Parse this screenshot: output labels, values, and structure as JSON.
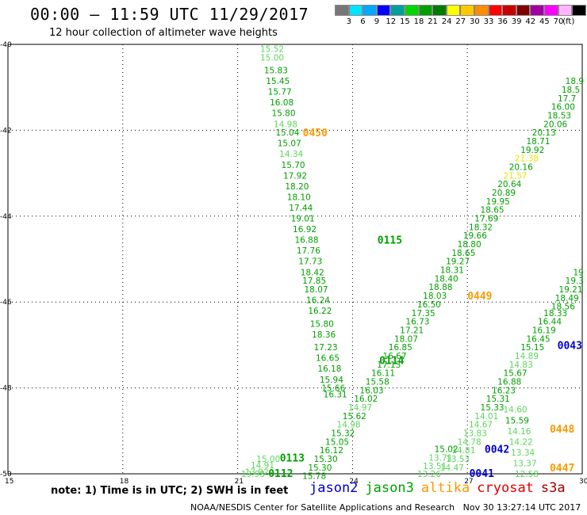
{
  "header": {
    "title": "00:00 – 11:59 UTC 11/29/2017",
    "subtitle": "12 hour collection of altimeter wave heights"
  },
  "legend": {
    "colors": [
      "#777777",
      "#00e5ff",
      "#00a8ff",
      "#0000ff",
      "#009e9e",
      "#00d700",
      "#00a000",
      "#007a00",
      "#ffff00",
      "#ffc800",
      "#ff8c00",
      "#ff0000",
      "#c80000",
      "#800000",
      "#a000a0",
      "#ff00ff",
      "#ffb4ff",
      "#000000"
    ],
    "labels": [
      "3",
      "6",
      "9",
      "12",
      "15",
      "18",
      "21",
      "24",
      "27",
      "30",
      "33",
      "36",
      "39",
      "42",
      "45",
      "70",
      "(ft)"
    ]
  },
  "axes": {
    "lon_labels": [
      "15",
      "18",
      "21",
      "24",
      "27",
      "30"
    ],
    "lat_labels": [
      "-40",
      "-42",
      "-44",
      "-46",
      "-48",
      "-50"
    ],
    "lon_range": [
      15,
      30
    ],
    "lat_range": [
      -40,
      -50
    ]
  },
  "map_data": {
    "tracks": [
      {
        "label": "0450",
        "label_color": "#ff9900",
        "label_pos": [
          22.7,
          -42.05
        ],
        "points": [
          {
            "lon": 21.9,
            "lat": -40.1,
            "v": "15.52",
            "c": "#5cd65c"
          },
          {
            "lon": 21.9,
            "lat": -40.3,
            "v": "15.00",
            "c": "#5cd65c"
          },
          {
            "lon": 22.0,
            "lat": -40.6,
            "v": "15.83",
            "c": "#00a000"
          },
          {
            "lon": 22.05,
            "lat": -40.85,
            "v": "15.45",
            "c": "#00a000"
          },
          {
            "lon": 22.1,
            "lat": -41.1,
            "v": "15.77",
            "c": "#00a000"
          },
          {
            "lon": 22.15,
            "lat": -41.35,
            "v": "16.08",
            "c": "#00a000"
          },
          {
            "lon": 22.2,
            "lat": -41.6,
            "v": "15.80",
            "c": "#00a000"
          },
          {
            "lon": 22.25,
            "lat": -41.85,
            "v": "14.98",
            "c": "#5cd65c"
          },
          {
            "lon": 22.3,
            "lat": -42.05,
            "v": "15.04",
            "c": "#00a000"
          },
          {
            "lon": 22.35,
            "lat": -42.3,
            "v": "15.07",
            "c": "#00a000"
          },
          {
            "lon": 22.4,
            "lat": -42.55,
            "v": "14.34",
            "c": "#5cd65c"
          },
          {
            "lon": 22.45,
            "lat": -42.8,
            "v": "15.70",
            "c": "#00a000"
          },
          {
            "lon": 22.5,
            "lat": -43.05,
            "v": "17.92",
            "c": "#00a000"
          },
          {
            "lon": 22.55,
            "lat": -43.3,
            "v": "18.20",
            "c": "#00a000"
          },
          {
            "lon": 22.6,
            "lat": -43.55,
            "v": "18.10",
            "c": "#00a000"
          },
          {
            "lon": 22.65,
            "lat": -43.8,
            "v": "17.44",
            "c": "#00a000"
          },
          {
            "lon": 22.7,
            "lat": -44.05,
            "v": "19.01",
            "c": "#00a000"
          },
          {
            "lon": 22.75,
            "lat": -44.3,
            "v": "16.92",
            "c": "#00a000"
          },
          {
            "lon": 22.8,
            "lat": -44.55,
            "v": "16.88",
            "c": "#00a000"
          },
          {
            "lon": 22.85,
            "lat": -44.8,
            "v": "17.76",
            "c": "#00a000"
          },
          {
            "lon": 22.9,
            "lat": -45.05,
            "v": "17.73",
            "c": "#00a000"
          },
          {
            "lon": 22.95,
            "lat": -45.3,
            "v": "18.42",
            "c": "#00a000"
          },
          {
            "lon": 23.0,
            "lat": -45.5,
            "v": "17.85",
            "c": "#00a000"
          },
          {
            "lon": 23.05,
            "lat": -45.7,
            "v": "18.07",
            "c": "#00a000"
          },
          {
            "lon": 23.1,
            "lat": -45.95,
            "v": "16.24",
            "c": "#00a000"
          },
          {
            "lon": 23.15,
            "lat": -46.2,
            "v": "16.22",
            "c": "#00a000"
          },
          {
            "lon": 23.2,
            "lat": -46.5,
            "v": "15.80",
            "c": "#00a000"
          },
          {
            "lon": 23.25,
            "lat": -46.75,
            "v": "18.36",
            "c": "#00a000"
          },
          {
            "lon": 23.3,
            "lat": -47.05,
            "v": "17.23",
            "c": "#00a000"
          },
          {
            "lon": 23.35,
            "lat": -47.3,
            "v": "16.65",
            "c": "#00a000"
          },
          {
            "lon": 23.4,
            "lat": -47.55,
            "v": "16.18",
            "c": "#00a000"
          },
          {
            "lon": 23.45,
            "lat": -47.8,
            "v": "15.94",
            "c": "#00a000"
          },
          {
            "lon": 23.5,
            "lat": -48.0,
            "v": "15.66",
            "c": "#00a000"
          },
          {
            "lon": 23.55,
            "lat": -48.15,
            "v": "16.31",
            "c": "#00a000"
          }
        ]
      },
      {
        "label": "0115",
        "label_color": "#00a000",
        "label_pos": [
          24.65,
          -44.55
        ],
        "points": [
          {
            "lon": 29.8,
            "lat": -40.85,
            "v": "18.9",
            "c": "#00a000"
          },
          {
            "lon": 29.7,
            "lat": -41.05,
            "v": "18.5",
            "c": "#00a000"
          },
          {
            "lon": 29.6,
            "lat": -41.25,
            "v": "17.7",
            "c": "#00a000"
          },
          {
            "lon": 29.5,
            "lat": -41.45,
            "v": "16.00",
            "c": "#00a000"
          },
          {
            "lon": 29.4,
            "lat": -41.65,
            "v": "18.53",
            "c": "#00a000"
          },
          {
            "lon": 29.3,
            "lat": -41.85,
            "v": "20.06",
            "c": "#00a000"
          },
          {
            "lon": 29.0,
            "lat": -42.05,
            "v": "20.13",
            "c": "#00a000"
          },
          {
            "lon": 28.85,
            "lat": -42.25,
            "v": "18.71",
            "c": "#00a000"
          },
          {
            "lon": 28.7,
            "lat": -42.45,
            "v": "19.92",
            "c": "#00a000"
          },
          {
            "lon": 28.55,
            "lat": -42.65,
            "v": "21.38",
            "c": "#e6e600"
          },
          {
            "lon": 28.4,
            "lat": -42.85,
            "v": "20.16",
            "c": "#00a000"
          },
          {
            "lon": 28.25,
            "lat": -43.05,
            "v": "21.57",
            "c": "#e6e600"
          },
          {
            "lon": 28.1,
            "lat": -43.25,
            "v": "20.64",
            "c": "#00a000"
          },
          {
            "lon": 27.95,
            "lat": -43.45,
            "v": "20.89",
            "c": "#00a000"
          },
          {
            "lon": 27.8,
            "lat": -43.65,
            "v": "19.95",
            "c": "#00a000"
          },
          {
            "lon": 27.65,
            "lat": -43.85,
            "v": "18.65",
            "c": "#00a000"
          },
          {
            "lon": 27.5,
            "lat": -44.05,
            "v": "17.69",
            "c": "#00a000"
          },
          {
            "lon": 27.35,
            "lat": -44.25,
            "v": "18.32",
            "c": "#00a000"
          },
          {
            "lon": 27.2,
            "lat": -44.45,
            "v": "19.66",
            "c": "#00a000"
          },
          {
            "lon": 27.05,
            "lat": -44.65,
            "v": "18.80",
            "c": "#00a000"
          },
          {
            "lon": 26.9,
            "lat": -44.85,
            "v": "18.65",
            "c": "#00a000"
          },
          {
            "lon": 26.75,
            "lat": -45.05,
            "v": "19.27",
            "c": "#00a000"
          },
          {
            "lon": 26.6,
            "lat": -45.25,
            "v": "18.31",
            "c": "#00a000"
          },
          {
            "lon": 26.45,
            "lat": -45.45,
            "v": "18.40",
            "c": "#00a000"
          },
          {
            "lon": 26.3,
            "lat": -45.65,
            "v": "18.88",
            "c": "#00a000"
          },
          {
            "lon": 26.15,
            "lat": -45.85,
            "v": "18.03",
            "c": "#00a000"
          },
          {
            "lon": 26.0,
            "lat": -46.05,
            "v": "16.50",
            "c": "#00a000"
          },
          {
            "lon": 25.85,
            "lat": -46.25,
            "v": "17.35",
            "c": "#00a000"
          },
          {
            "lon": 25.7,
            "lat": -46.45,
            "v": "16.73",
            "c": "#00a000"
          },
          {
            "lon": 25.55,
            "lat": -46.65,
            "v": "17.21",
            "c": "#00a000"
          },
          {
            "lon": 25.4,
            "lat": -46.85,
            "v": "18.07",
            "c": "#00a000"
          },
          {
            "lon": 25.25,
            "lat": -47.05,
            "v": "16.85",
            "c": "#00a000"
          },
          {
            "lon": 25.1,
            "lat": -47.25,
            "v": "16.67",
            "c": "#00a000"
          },
          {
            "lon": 24.95,
            "lat": -47.45,
            "v": "17.13",
            "c": "#00a000"
          }
        ]
      },
      {
        "label": "0449",
        "label_color": "#ff9900",
        "label_pos": [
          27.0,
          -45.85
        ],
        "points": []
      },
      {
        "label": "0114",
        "label_color": "#00a000",
        "label_pos": [
          24.7,
          -47.35
        ],
        "points": [
          {
            "lon": 24.8,
            "lat": -47.65,
            "v": "16.11",
            "c": "#00a000"
          },
          {
            "lon": 24.65,
            "lat": -47.85,
            "v": "15.58",
            "c": "#00a000"
          },
          {
            "lon": 24.5,
            "lat": -48.05,
            "v": "16.03",
            "c": "#00a000"
          },
          {
            "lon": 24.35,
            "lat": -48.25,
            "v": "16.02",
            "c": "#00a000"
          },
          {
            "lon": 24.2,
            "lat": -48.45,
            "v": "14.97",
            "c": "#5cd65c"
          },
          {
            "lon": 24.05,
            "lat": -48.65,
            "v": "15.62",
            "c": "#00a000"
          },
          {
            "lon": 23.9,
            "lat": -48.85,
            "v": "14.98",
            "c": "#5cd65c"
          },
          {
            "lon": 23.75,
            "lat": -49.05,
            "v": "15.32",
            "c": "#00a000"
          },
          {
            "lon": 23.6,
            "lat": -49.25,
            "v": "15.05",
            "c": "#00a000"
          },
          {
            "lon": 23.45,
            "lat": -49.45,
            "v": "16.12",
            "c": "#00a000"
          },
          {
            "lon": 23.3,
            "lat": -49.65,
            "v": "15.30",
            "c": "#00a000"
          },
          {
            "lon": 23.15,
            "lat": -49.85,
            "v": "15.30",
            "c": "#00a000"
          },
          {
            "lon": 23.0,
            "lat": -50.05,
            "v": "15.78",
            "c": "#00a000"
          }
        ]
      },
      {
        "label": "0043",
        "label_color": "#0000cc",
        "label_pos": [
          29.35,
          -47.0
        ],
        "points": [
          {
            "lon": 29.9,
            "lat": -45.3,
            "v": "19",
            "c": "#00a000"
          },
          {
            "lon": 29.8,
            "lat": -45.5,
            "v": "19.3",
            "c": "#00a000"
          },
          {
            "lon": 29.7,
            "lat": -45.7,
            "v": "19.21",
            "c": "#00a000"
          },
          {
            "lon": 29.6,
            "lat": -45.9,
            "v": "18.49",
            "c": "#00a000"
          },
          {
            "lon": 29.5,
            "lat": -46.1,
            "v": "18.56",
            "c": "#00a000"
          },
          {
            "lon": 29.3,
            "lat": -46.25,
            "v": "18.33",
            "c": "#00a000"
          },
          {
            "lon": 29.15,
            "lat": -46.45,
            "v": "16.44",
            "c": "#00a000"
          },
          {
            "lon": 29.0,
            "lat": -46.65,
            "v": "16.19",
            "c": "#00a000"
          },
          {
            "lon": 28.85,
            "lat": -46.85,
            "v": "16.45",
            "c": "#00a000"
          },
          {
            "lon": 28.7,
            "lat": -47.05,
            "v": "15.15",
            "c": "#00a000"
          },
          {
            "lon": 28.55,
            "lat": -47.25,
            "v": "14.89",
            "c": "#5cd65c"
          },
          {
            "lon": 28.4,
            "lat": -47.45,
            "v": "14.83",
            "c": "#5cd65c"
          },
          {
            "lon": 28.25,
            "lat": -47.65,
            "v": "15.67",
            "c": "#00a000"
          },
          {
            "lon": 28.1,
            "lat": -47.85,
            "v": "16.88",
            "c": "#00a000"
          },
          {
            "lon": 27.95,
            "lat": -48.05,
            "v": "16.23",
            "c": "#00a000"
          },
          {
            "lon": 27.8,
            "lat": -48.25,
            "v": "15.31",
            "c": "#00a000"
          },
          {
            "lon": 27.65,
            "lat": -48.45,
            "v": "15.33",
            "c": "#00a000"
          },
          {
            "lon": 27.5,
            "lat": -48.65,
            "v": "14.01",
            "c": "#5cd65c"
          },
          {
            "lon": 27.35,
            "lat": -48.85,
            "v": "14.67",
            "c": "#5cd65c"
          },
          {
            "lon": 27.2,
            "lat": -49.05,
            "v": "13.83",
            "c": "#5cd65c"
          },
          {
            "lon": 27.05,
            "lat": -49.25,
            "v": "14.78",
            "c": "#5cd65c"
          },
          {
            "lon": 26.9,
            "lat": -49.45,
            "v": "14.81",
            "c": "#5cd65c"
          },
          {
            "lon": 26.75,
            "lat": -49.65,
            "v": "13.53",
            "c": "#5cd65c"
          },
          {
            "lon": 26.6,
            "lat": -49.85,
            "v": "14.47",
            "c": "#5cd65c"
          }
        ]
      },
      {
        "label": "0448",
        "label_color": "#ff9900",
        "label_pos": [
          29.15,
          -48.95
        ],
        "points": [
          {
            "lon": 28.25,
            "lat": -48.5,
            "v": "14.60",
            "c": "#5cd65c"
          },
          {
            "lon": 28.3,
            "lat": -48.75,
            "v": "15.59",
            "c": "#00a000"
          },
          {
            "lon": 28.35,
            "lat": -49.0,
            "v": "14.16",
            "c": "#5cd65c"
          },
          {
            "lon": 28.4,
            "lat": -49.25,
            "v": "14.22",
            "c": "#5cd65c"
          },
          {
            "lon": 28.45,
            "lat": -49.5,
            "v": "13.34",
            "c": "#5cd65c"
          },
          {
            "lon": 28.5,
            "lat": -49.75,
            "v": "13.37",
            "c": "#5cd65c"
          },
          {
            "lon": 28.55,
            "lat": -50.0,
            "v": "12.58",
            "c": "#5cd65c"
          }
        ]
      },
      {
        "label": "0447",
        "label_color": "#ff9900",
        "label_pos": [
          29.15,
          -49.85
        ],
        "points": []
      },
      {
        "label": "0042",
        "label_color": "#0000cc",
        "label_pos": [
          27.45,
          -49.42
        ],
        "points": [
          {
            "lon": 26.45,
            "lat": -49.42,
            "v": "15.02",
            "c": "#00a000"
          },
          {
            "lon": 26.3,
            "lat": -49.62,
            "v": "13.71",
            "c": "#5cd65c"
          },
          {
            "lon": 26.15,
            "lat": -49.82,
            "v": "13.51",
            "c": "#5cd65c"
          },
          {
            "lon": 26.0,
            "lat": -50.0,
            "v": "13.26",
            "c": "#5cd65c"
          }
        ]
      },
      {
        "label": "0041",
        "label_color": "#0000cc",
        "label_pos": [
          27.05,
          -49.98
        ],
        "points": []
      },
      {
        "label": "0113",
        "label_color": "#00a000",
        "label_pos": [
          22.1,
          -49.62
        ],
        "points": [
          {
            "lon": 21.8,
            "lat": -49.65,
            "v": "15.00",
            "c": "#5cd65c"
          },
          {
            "lon": 21.65,
            "lat": -49.8,
            "v": "14.91",
            "c": "#5cd65c"
          },
          {
            "lon": 21.5,
            "lat": -49.95,
            "v": "13.92",
            "c": "#5cd65c"
          }
        ]
      },
      {
        "label": "0112",
        "label_color": "#00a000",
        "label_pos": [
          21.8,
          -49.98
        ],
        "points": [
          {
            "lon": 21.4,
            "lat": -50.0,
            "v": "13.93",
            "c": "#5cd65c"
          }
        ]
      }
    ]
  },
  "footer": {
    "note": "note: 1) Time is in UTC; 2) SWH is in feet",
    "satellites": [
      {
        "name": "jason2",
        "color": "#0000cc"
      },
      {
        "name": "jason3",
        "color": "#00a000"
      },
      {
        "name": "altika",
        "color": "#ff9900"
      },
      {
        "name": "cryosat",
        "color": "#e00000"
      },
      {
        "name": "s3a",
        "color": "#a00000"
      }
    ],
    "credit": "NOAA/NESDIS Center for Satellite Applications and Research   Nov 30 13:27:14 UTC 2017"
  }
}
